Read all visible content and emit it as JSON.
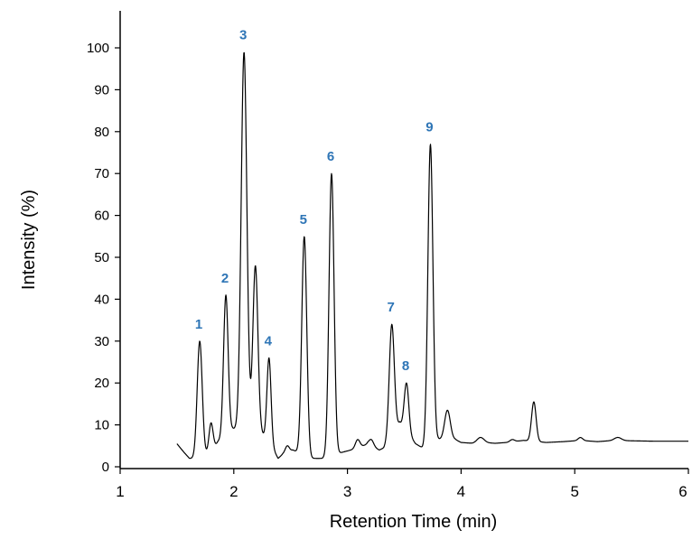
{
  "chart_data": {
    "type": "line",
    "title": "",
    "xlabel": "Retention Time (min)",
    "ylabel": "Intensity (%)",
    "xlim": [
      1,
      6
    ],
    "ylim": [
      0,
      100
    ],
    "x_ticks": [
      "1",
      "2",
      "3",
      "4",
      "5",
      "6"
    ],
    "y_ticks": [
      "0",
      "10",
      "20",
      "30",
      "40",
      "50",
      "60",
      "70",
      "80",
      "90",
      "100"
    ],
    "grid": false,
    "legend": "none",
    "colors": {
      "line": "#000000",
      "peak_label": "#2e75b6"
    },
    "baseline": [
      [
        1.5,
        5.5
      ],
      [
        1.56,
        3.5
      ],
      [
        1.61,
        2.0
      ],
      [
        1.66,
        2.0
      ],
      [
        1.81,
        3.5
      ],
      [
        1.86,
        6.0
      ],
      [
        1.99,
        9.0
      ],
      [
        2.05,
        9.0
      ],
      [
        2.24,
        8.0
      ],
      [
        2.31,
        6.0
      ],
      [
        2.39,
        2.0
      ],
      [
        2.43,
        3.0
      ],
      [
        2.52,
        4.0
      ],
      [
        2.68,
        2.0
      ],
      [
        2.78,
        2.0
      ],
      [
        2.96,
        3.5
      ],
      [
        3.1,
        4.5
      ],
      [
        3.18,
        5.5
      ],
      [
        3.28,
        4.0
      ],
      [
        3.32,
        4.5
      ],
      [
        3.46,
        10.5
      ],
      [
        3.6,
        5.5
      ],
      [
        3.66,
        4.5
      ],
      [
        3.8,
        6.5
      ],
      [
        3.95,
        6.5
      ],
      [
        4.0,
        5.8
      ],
      [
        4.1,
        5.6
      ],
      [
        4.2,
        5.8
      ],
      [
        4.3,
        5.6
      ],
      [
        4.4,
        5.8
      ],
      [
        4.55,
        6.3
      ],
      [
        4.75,
        5.8
      ],
      [
        4.9,
        6.0
      ],
      [
        5.05,
        6.3
      ],
      [
        5.2,
        6.0
      ],
      [
        5.35,
        6.3
      ],
      [
        5.5,
        6.2
      ],
      [
        5.7,
        6.1
      ],
      [
        5.85,
        6.1
      ],
      [
        6.0,
        6.1
      ]
    ],
    "peaks": [
      {
        "label": "1",
        "rt": 1.7,
        "height": 30,
        "sigma": 0.022
      },
      {
        "label": "2",
        "rt": 1.93,
        "height": 41,
        "sigma": 0.02
      },
      {
        "label": "3",
        "rt": 2.09,
        "height": 99,
        "sigma": 0.025
      },
      {
        "label": "4",
        "rt": 2.31,
        "height": 26,
        "sigma": 0.018
      },
      {
        "label": "5",
        "rt": 2.62,
        "height": 55,
        "sigma": 0.022
      },
      {
        "label": "6",
        "rt": 2.86,
        "height": 70,
        "sigma": 0.022
      },
      {
        "label": "7",
        "rt": 3.39,
        "height": 34,
        "sigma": 0.022
      },
      {
        "label": "8",
        "rt": 3.52,
        "height": 20,
        "sigma": 0.02
      },
      {
        "label": "9",
        "rt": 3.73,
        "height": 77,
        "sigma": 0.022
      }
    ],
    "minor_peaks": [
      {
        "rt": 1.8,
        "height": 10.5,
        "sigma": 0.018
      },
      {
        "rt": 2.19,
        "height": 48,
        "sigma": 0.022
      },
      {
        "rt": 2.47,
        "height": 5,
        "sigma": 0.018
      },
      {
        "rt": 3.09,
        "height": 6.5,
        "sigma": 0.02
      },
      {
        "rt": 3.21,
        "height": 6.5,
        "sigma": 0.02
      },
      {
        "rt": 3.88,
        "height": 13.5,
        "sigma": 0.025
      },
      {
        "rt": 4.17,
        "height": 7,
        "sigma": 0.03
      },
      {
        "rt": 4.45,
        "height": 6.5,
        "sigma": 0.02
      },
      {
        "rt": 4.64,
        "height": 15.5,
        "sigma": 0.02
      },
      {
        "rt": 5.05,
        "height": 7,
        "sigma": 0.02
      },
      {
        "rt": 5.38,
        "height": 7,
        "sigma": 0.03
      }
    ]
  }
}
